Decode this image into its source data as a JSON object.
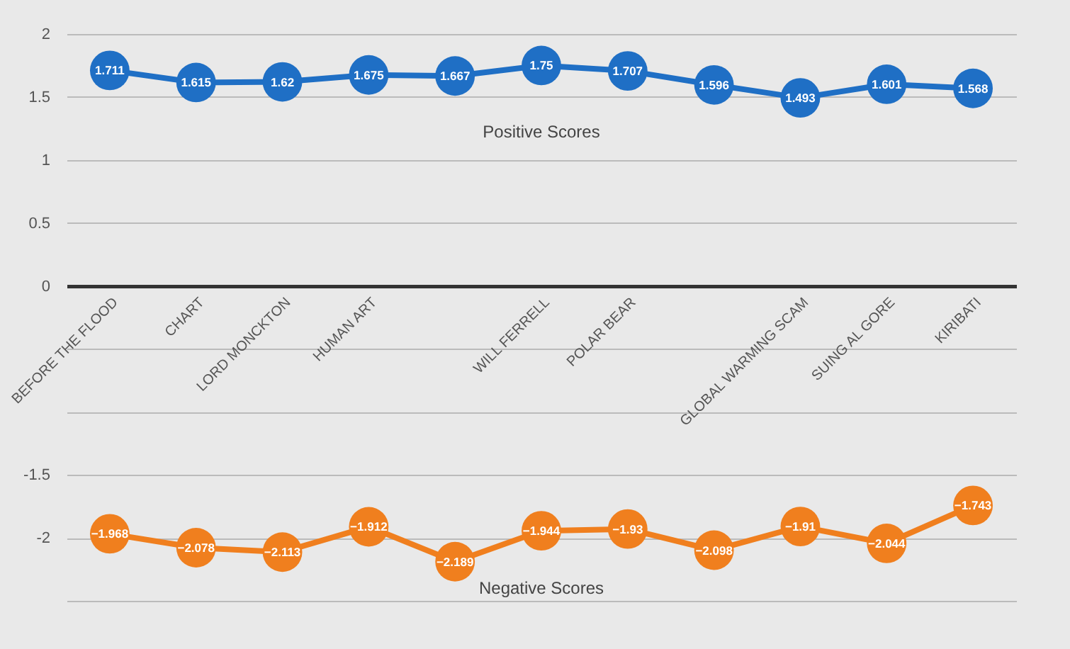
{
  "chart_data": {
    "type": "line",
    "categories": [
      "BEFORE THE FLOOD",
      "CHART",
      "LORD MONCKTON",
      "HUMAN ART",
      null,
      "WILL FERRELL",
      "POLAR BEAR",
      null,
      "GLOBAL WARMING SCAM",
      "SUING AL GORE",
      "KIRIBATI"
    ],
    "series": [
      {
        "name": "Positive Scores",
        "color": "#1f6fc5",
        "values": [
          1.711,
          1.615,
          1.62,
          1.675,
          1.667,
          1.75,
          1.707,
          1.596,
          1.493,
          1.601,
          1.568
        ]
      },
      {
        "name": "Negative Scores",
        "color": "#f07f1e",
        "values": [
          -1.968,
          -2.078,
          -2.113,
          -1.912,
          -2.189,
          -1.944,
          -1.93,
          -2.098,
          -1.91,
          -2.044,
          -1.743
        ]
      }
    ],
    "ylim": [
      -2.5,
      2
    ],
    "yticks": [
      {
        "value": -2.5,
        "label": null
      },
      -2,
      -1.5,
      {
        "value": -1,
        "label": null
      },
      {
        "value": -0.5,
        "label": null
      },
      0,
      0.5,
      1,
      1.5,
      2
    ],
    "grid": "y",
    "marker": "circle",
    "line_style": "solid",
    "data_labels": true,
    "legend": false
  }
}
